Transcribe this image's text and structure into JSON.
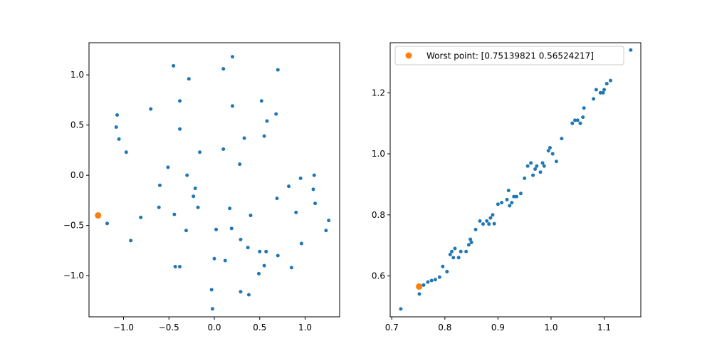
{
  "colors": {
    "series_blue": "#1f77b4",
    "worst_orange": "#ff7f0e",
    "legend_border": "#cccccc",
    "frame": "#000000"
  },
  "chart_data": [
    {
      "type": "scatter",
      "title": "",
      "xlabel": "",
      "ylabel": "",
      "xlim": [
        -1.38,
        1.38
      ],
      "ylim": [
        -1.41,
        1.32
      ],
      "xticks": [
        -1.0,
        -0.5,
        0.0,
        0.5,
        1.0
      ],
      "xtick_labels": [
        "−1.0",
        "−0.5",
        "0.0",
        "0.5",
        "1.0"
      ],
      "yticks": [
        -1.0,
        -0.5,
        0.0,
        0.5,
        1.0
      ],
      "ytick_labels": [
        "−1.0",
        "−0.5",
        "0.0",
        "0.5",
        "1.0"
      ],
      "grid": false,
      "series": [
        {
          "color": "#1f77b4",
          "marker_size": "small",
          "x": [
            0.2,
            -0.45,
            0.1,
            0.7,
            -0.28,
            -0.38,
            0.52,
            0.2,
            -1.07,
            0.58,
            0.68,
            -1.08,
            -0.7,
            -0.38,
            -1.05,
            0.33,
            -0.97,
            0.1,
            -0.16,
            0.28,
            -0.51,
            -0.3,
            1.1,
            0.95,
            -0.6,
            0.55,
            0.82,
            -0.21,
            1.09,
            -0.23,
            0.69,
            1.11,
            -0.18,
            0.17,
            -0.81,
            0.4,
            -0.61,
            0.9,
            -0.44,
            1.26,
            0.02,
            -1.18,
            0.19,
            1.23,
            -0.31,
            -0.92,
            0.29,
            0.96,
            0.37,
            0.5,
            0.57,
            0.7,
            0.0,
            0.12,
            0.55,
            0.85,
            -0.43,
            -0.38,
            0.49,
            0.29,
            0.38,
            -0.03,
            -0.02
          ],
          "y": [
            1.18,
            1.09,
            1.06,
            1.05,
            0.96,
            0.74,
            0.74,
            0.69,
            0.6,
            0.54,
            0.61,
            0.48,
            0.66,
            0.46,
            0.36,
            0.37,
            0.23,
            0.26,
            0.23,
            0.11,
            0.08,
            0.0,
            0.0,
            -0.03,
            -0.1,
            0.39,
            -0.11,
            -0.13,
            -0.14,
            -0.21,
            -0.23,
            -0.28,
            -0.32,
            -0.33,
            -0.42,
            -0.4,
            -0.32,
            -0.37,
            -0.39,
            -0.45,
            -0.54,
            -0.48,
            -0.53,
            -0.55,
            -0.55,
            -0.65,
            -0.64,
            -0.68,
            -0.72,
            -0.76,
            -0.76,
            -0.8,
            -0.83,
            -0.85,
            -0.9,
            -0.92,
            -0.91,
            -0.91,
            -0.98,
            -1.16,
            -1.19,
            -1.14,
            -1.33
          ]
        },
        {
          "color": "#ff7f0e",
          "marker_size": "large",
          "x": [
            -1.28
          ],
          "y": [
            -0.4
          ]
        }
      ]
    },
    {
      "type": "scatter",
      "title": "",
      "xlabel": "",
      "ylabel": "",
      "xlim": [
        0.697,
        1.169
      ],
      "ylim": [
        0.466,
        1.364
      ],
      "xticks": [
        0.7,
        0.8,
        0.9,
        1.0,
        1.1
      ],
      "xtick_labels": [
        "0.7",
        "0.8",
        "0.9",
        "1.0",
        "1.1"
      ],
      "yticks": [
        0.6,
        0.8,
        1.0,
        1.2
      ],
      "ytick_labels": [
        "0.6",
        "0.8",
        "1.0",
        "1.2"
      ],
      "grid": false,
      "legend": {
        "location": "upper-left",
        "entries": [
          "Worst point: [0.75139821 0.56524217]"
        ]
      },
      "series": [
        {
          "color": "#1f77b4",
          "marker_size": "small",
          "x": [
            0.717,
            0.752,
            0.76,
            0.768,
            0.775,
            0.782,
            0.79,
            0.796,
            0.804,
            0.81,
            0.813,
            0.816,
            0.819,
            0.826,
            0.83,
            0.84,
            0.845,
            0.848,
            0.85,
            0.858,
            0.866,
            0.872,
            0.879,
            0.883,
            0.886,
            0.89,
            0.893,
            0.9,
            0.907,
            0.917,
            0.92,
            0.922,
            0.926,
            0.93,
            0.935,
            0.943,
            0.95,
            0.956,
            0.962,
            0.966,
            0.97,
            0.973,
            0.98,
            0.984,
            0.987,
            0.995,
            0.998,
            1.003,
            1.01,
            1.02,
            1.04,
            1.045,
            1.05,
            1.055,
            1.06,
            1.062,
            1.08,
            1.085,
            1.093,
            1.098,
            1.1,
            1.105,
            1.112,
            1.15
          ],
          "y": [
            0.492,
            0.541,
            0.57,
            0.58,
            0.585,
            0.588,
            0.596,
            0.631,
            0.614,
            0.67,
            0.68,
            0.66,
            0.69,
            0.66,
            0.68,
            0.68,
            0.702,
            0.72,
            0.71,
            0.752,
            0.78,
            0.77,
            0.78,
            0.77,
            0.79,
            0.8,
            0.771,
            0.835,
            0.84,
            0.85,
            0.88,
            0.83,
            0.84,
            0.86,
            0.86,
            0.87,
            0.92,
            0.96,
            0.97,
            0.93,
            0.95,
            0.96,
            0.94,
            0.97,
            0.96,
            1.01,
            1.02,
            1.0,
            0.975,
            1.05,
            1.1,
            1.11,
            1.11,
            1.1,
            1.12,
            1.15,
            1.18,
            1.21,
            1.2,
            1.2,
            1.21,
            1.23,
            1.24,
            1.34
          ]
        },
        {
          "color": "#ff7f0e",
          "marker_size": "large",
          "x": [
            0.75139821
          ],
          "y": [
            0.56524217
          ]
        }
      ]
    }
  ]
}
